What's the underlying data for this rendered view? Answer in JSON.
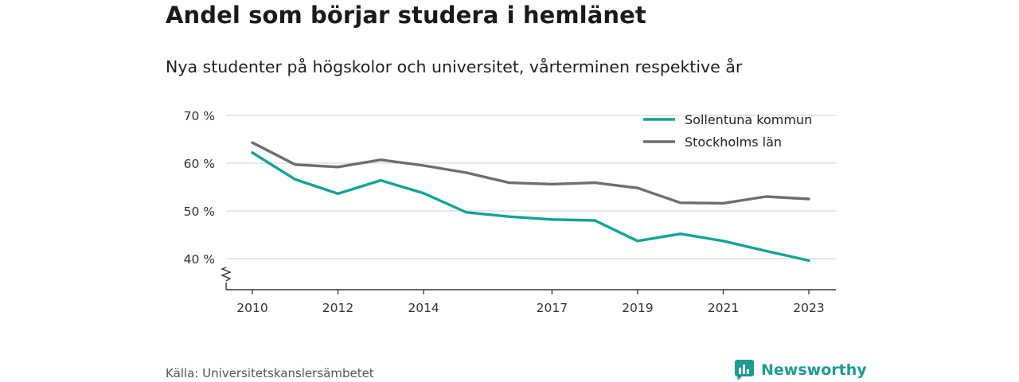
{
  "title": "Andel som börjar studera i hemlänet",
  "subtitle": "Nya studenter på högskolor och universitet, vårterminen respektive år",
  "source": "Källa: Universitetskanslersämbetet",
  "brand": {
    "name": "Newsworthy",
    "icon": "newsworthy-logo-icon",
    "color": "#1f9c91"
  },
  "chart_data": {
    "type": "line",
    "x": [
      2010,
      2011,
      2012,
      2013,
      2014,
      2015,
      2016,
      2017,
      2018,
      2019,
      2020,
      2021,
      2022,
      2023
    ],
    "x_ticks": [
      2010,
      2012,
      2014,
      2017,
      2019,
      2021,
      2023
    ],
    "y_ticks": [
      40,
      50,
      60,
      70
    ],
    "y_tick_suffix": " %",
    "ylim": [
      34,
      70
    ],
    "y_axis_break": true,
    "grid": true,
    "legend_position": "top-right",
    "series": [
      {
        "name": "Sollentuna kommun",
        "color": "#13a398",
        "values": [
          62.2,
          56.6,
          53.6,
          56.4,
          53.7,
          49.7,
          48.8,
          48.2,
          48.0,
          43.7,
          45.2,
          43.7,
          41.6,
          39.6
        ]
      },
      {
        "name": "Stockholms län",
        "color": "#6e6d73",
        "values": [
          64.3,
          59.7,
          59.2,
          60.7,
          59.5,
          58.0,
          55.9,
          55.6,
          55.9,
          54.8,
          51.7,
          51.6,
          53.0,
          52.5
        ]
      }
    ]
  }
}
